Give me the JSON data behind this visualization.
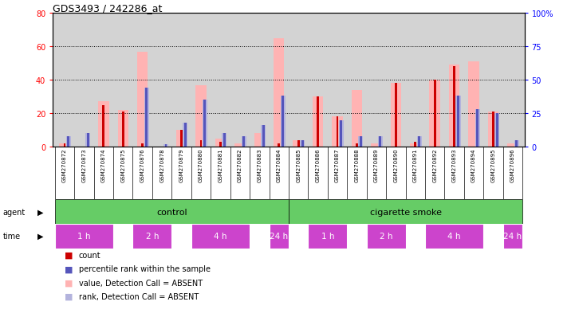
{
  "title": "GDS3493 / 242286_at",
  "samples": [
    "GSM270872",
    "GSM270873",
    "GSM270874",
    "GSM270875",
    "GSM270876",
    "GSM270878",
    "GSM270879",
    "GSM270880",
    "GSM270881",
    "GSM270882",
    "GSM270883",
    "GSM270884",
    "GSM270885",
    "GSM270886",
    "GSM270887",
    "GSM270888",
    "GSM270889",
    "GSM270890",
    "GSM270891",
    "GSM270892",
    "GSM270893",
    "GSM270894",
    "GSM270895",
    "GSM270896"
  ],
  "count_values": [
    2,
    0,
    25,
    21,
    2,
    0,
    10,
    4,
    3,
    0,
    0,
    2,
    4,
    30,
    18,
    2,
    0,
    38,
    3,
    40,
    48,
    0,
    21,
    0
  ],
  "rank_values": [
    8,
    10,
    0,
    0,
    44,
    2,
    18,
    35,
    10,
    8,
    16,
    38,
    5,
    0,
    20,
    8,
    8,
    0,
    8,
    0,
    38,
    28,
    25,
    5
  ],
  "value_absent": [
    2,
    0,
    27,
    22,
    57,
    0,
    10,
    37,
    5,
    2,
    8,
    65,
    4,
    30,
    18,
    34,
    2,
    38,
    2,
    40,
    49,
    51,
    21,
    2
  ],
  "rank_absent": [
    8,
    10,
    0,
    0,
    44,
    2,
    18,
    35,
    10,
    8,
    16,
    38,
    5,
    0,
    20,
    8,
    8,
    0,
    8,
    0,
    38,
    28,
    25,
    5
  ],
  "ylim_left": [
    0,
    80
  ],
  "ylim_right": [
    0,
    100
  ],
  "yticks_left": [
    0,
    20,
    40,
    60,
    80
  ],
  "yticks_right": [
    0,
    25,
    50,
    75,
    100
  ],
  "ytick_right_labels": [
    "0",
    "25",
    "50",
    "75",
    "100%"
  ],
  "color_count": "#cc0000",
  "color_rank": "#5555bb",
  "color_value_absent": "#ffb3b3",
  "color_rank_absent": "#b3b3dd",
  "bg_plot": "#d3d3d3",
  "color_control": "#66cc66",
  "color_smoke": "#66cc66",
  "color_time": "#cc44cc",
  "legend_labels": [
    "count",
    "percentile rank within the sample",
    "value, Detection Call = ABSENT",
    "rank, Detection Call = ABSENT"
  ],
  "legend_colors": [
    "#cc0000",
    "#5555bb",
    "#ffb3b3",
    "#b3b3dd"
  ],
  "time_blocks": [
    {
      "label": "1 h",
      "s": -0.5,
      "e": 2.5
    },
    {
      "label": "2 h",
      "s": 3.5,
      "e": 5.5
    },
    {
      "label": "4 h",
      "s": 6.5,
      "e": 9.5
    },
    {
      "label": "24 h",
      "s": 10.5,
      "e": 11.5
    },
    {
      "label": "1 h",
      "s": 12.5,
      "e": 14.5
    },
    {
      "label": "2 h",
      "s": 15.5,
      "e": 17.5
    },
    {
      "label": "4 h",
      "s": 18.5,
      "e": 21.5
    },
    {
      "label": "24 h",
      "s": 22.5,
      "e": 23.5
    }
  ]
}
